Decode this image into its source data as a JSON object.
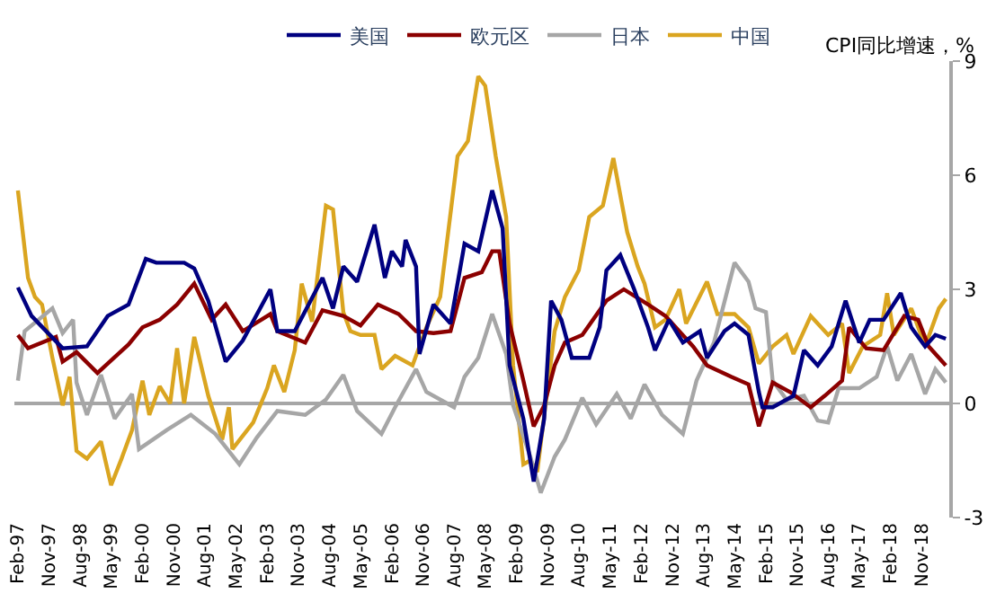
{
  "chart_data": {
    "type": "line",
    "ylabel": "CPI同比增速，%",
    "legend": "top",
    "grid": false,
    "marker": "none",
    "line_style": "solid",
    "xlim": [
      "1997-01",
      "2019-07"
    ],
    "xticks": [
      {
        "value": "1997-02",
        "label": "Feb-97"
      },
      {
        "value": "1997-11",
        "label": "Nov-97"
      },
      {
        "value": "1998-08",
        "label": "Aug-98"
      },
      {
        "value": "1999-05",
        "label": "May-99"
      },
      {
        "value": "2000-02",
        "label": "Feb-00"
      },
      {
        "value": "2000-11",
        "label": "Nov-00"
      },
      {
        "value": "2001-08",
        "label": "Aug-01"
      },
      {
        "value": "2002-05",
        "label": "May-02"
      },
      {
        "value": "2003-02",
        "label": "Feb-03"
      },
      {
        "value": "2003-11",
        "label": "Nov-03"
      },
      {
        "value": "2004-08",
        "label": "Aug-04"
      },
      {
        "value": "2005-05",
        "label": "May-05"
      },
      {
        "value": "2006-02",
        "label": "Feb-06"
      },
      {
        "value": "2006-11",
        "label": "Nov-06"
      },
      {
        "value": "2007-08",
        "label": "Aug-07"
      },
      {
        "value": "2008-05",
        "label": "May-08"
      },
      {
        "value": "2009-02",
        "label": "Feb-09"
      },
      {
        "value": "2009-11",
        "label": "Nov-09"
      },
      {
        "value": "2010-08",
        "label": "Aug-10"
      },
      {
        "value": "2011-05",
        "label": "May-11"
      },
      {
        "value": "2012-02",
        "label": "Feb-12"
      },
      {
        "value": "2012-11",
        "label": "Nov-12"
      },
      {
        "value": "2013-08",
        "label": "Aug-13"
      },
      {
        "value": "2014-05",
        "label": "May-14"
      },
      {
        "value": "2015-02",
        "label": "Feb-15"
      },
      {
        "value": "2015-11",
        "label": "Nov-15"
      },
      {
        "value": "2016-08",
        "label": "Aug-16"
      },
      {
        "value": "2017-05",
        "label": "May-17"
      },
      {
        "value": "2018-02",
        "label": "Feb-18"
      },
      {
        "value": "2018-11",
        "label": "Nov-18"
      }
    ],
    "ylim": [
      -3,
      9
    ],
    "yticks": [
      -3,
      0,
      3,
      6,
      9
    ],
    "ref_lines": [
      {
        "axis": "y",
        "value": 0,
        "color": "#a6a6a6"
      }
    ],
    "series": [
      {
        "name": "美国",
        "color": "#000080",
        "x": [
          "1997-02",
          "1997-06",
          "1998-03",
          "1998-10",
          "1999-04",
          "1999-10",
          "2000-03",
          "2000-06",
          "2001-02",
          "2001-05",
          "2001-09",
          "2002-02",
          "2002-07",
          "2003-03",
          "2003-05",
          "2003-10",
          "2004-06",
          "2004-09",
          "2004-12",
          "2005-04",
          "2005-09",
          "2005-12",
          "2006-02",
          "2006-05",
          "2006-06",
          "2006-09",
          "2006-10",
          "2007-02",
          "2007-07",
          "2007-11",
          "2008-03",
          "2008-07",
          "2008-10",
          "2008-12",
          "2009-04",
          "2009-07",
          "2009-10",
          "2009-12",
          "2010-03",
          "2010-06",
          "2010-11",
          "2011-02",
          "2011-04",
          "2011-08",
          "2011-12",
          "2012-04",
          "2012-06",
          "2012-10",
          "2013-02",
          "2013-07",
          "2013-09",
          "2014-02",
          "2014-05",
          "2014-09",
          "2014-12",
          "2015-01",
          "2015-04",
          "2015-10",
          "2016-01",
          "2016-05",
          "2016-09",
          "2017-01",
          "2017-05",
          "2017-08",
          "2017-12",
          "2018-05",
          "2018-08",
          "2018-12",
          "2019-03",
          "2019-06"
        ],
        "values": [
          3.05,
          2.3,
          1.45,
          1.5,
          2.3,
          2.6,
          3.8,
          3.7,
          3.7,
          3.55,
          2.7,
          1.1,
          1.65,
          3.0,
          1.9,
          1.9,
          3.3,
          2.5,
          3.6,
          3.2,
          4.7,
          3.3,
          4.0,
          3.6,
          4.3,
          3.6,
          1.3,
          2.6,
          2.1,
          4.2,
          4.0,
          5.6,
          4.6,
          1.0,
          -0.4,
          -2.05,
          -0.4,
          2.7,
          2.2,
          1.2,
          1.2,
          2.0,
          3.5,
          3.9,
          3.0,
          2.0,
          1.4,
          2.2,
          1.6,
          1.9,
          1.2,
          1.9,
          2.1,
          1.8,
          0.3,
          -0.1,
          -0.1,
          0.2,
          1.4,
          1.0,
          1.5,
          2.7,
          1.6,
          2.2,
          2.2,
          2.9,
          2.0,
          1.5,
          1.8,
          1.7
        ]
      },
      {
        "name": "欧元区",
        "color": "#8b0000",
        "x": [
          "1997-02",
          "1997-05",
          "1998-01",
          "1998-03",
          "1998-07",
          "1999-01",
          "1999-04",
          "1999-10",
          "2000-02",
          "2000-07",
          "2000-12",
          "2001-05",
          "2001-10",
          "2002-02",
          "2002-07",
          "2003-03",
          "2003-05",
          "2004-01",
          "2004-06",
          "2004-12",
          "2005-05",
          "2005-10",
          "2006-04",
          "2006-09",
          "2007-02",
          "2007-07",
          "2007-11",
          "2008-04",
          "2008-07",
          "2008-09",
          "2008-12",
          "2009-04",
          "2009-07",
          "2009-10",
          "2010-01",
          "2010-04",
          "2010-09",
          "2011-04",
          "2011-09",
          "2012-04",
          "2012-09",
          "2013-05",
          "2013-09",
          "2014-04",
          "2014-09",
          "2014-12",
          "2015-04",
          "2015-09",
          "2016-03",
          "2016-07",
          "2016-12",
          "2017-02",
          "2017-07",
          "2017-12",
          "2018-06",
          "2018-10",
          "2019-01",
          "2019-06"
        ],
        "values": [
          1.8,
          1.45,
          1.75,
          1.1,
          1.35,
          0.8,
          1.05,
          1.55,
          2.0,
          2.2,
          2.6,
          3.15,
          2.2,
          2.6,
          1.9,
          2.35,
          1.9,
          1.6,
          2.45,
          2.3,
          2.05,
          2.6,
          2.35,
          1.9,
          1.85,
          1.9,
          3.3,
          3.45,
          4.0,
          4.0,
          2.1,
          0.6,
          -0.6,
          -0.05,
          1.0,
          1.6,
          1.8,
          2.7,
          3.0,
          2.6,
          2.3,
          1.5,
          1.0,
          0.7,
          0.5,
          -0.6,
          0.55,
          0.3,
          -0.1,
          0.2,
          0.6,
          2.0,
          1.45,
          1.4,
          2.3,
          2.2,
          1.5,
          1.0
        ]
      },
      {
        "name": "日本",
        "color": "#a6a6a6",
        "x": [
          "1997-02",
          "1997-04",
          "1997-12",
          "1998-03",
          "1998-06",
          "1998-07",
          "1998-10",
          "1999-02",
          "1999-06",
          "1999-11",
          "2000-01",
          "2000-09",
          "2001-04",
          "2001-11",
          "2002-06",
          "2002-11",
          "2003-05",
          "2004-01",
          "2004-07",
          "2004-12",
          "2005-04",
          "2005-11",
          "2006-03",
          "2006-09",
          "2006-12",
          "2007-08",
          "2007-11",
          "2008-03",
          "2008-07",
          "2008-11",
          "2009-01",
          "2009-06",
          "2009-09",
          "2010-01",
          "2010-04",
          "2010-09",
          "2011-01",
          "2011-07",
          "2011-11",
          "2012-03",
          "2012-08",
          "2013-02",
          "2013-06",
          "2013-11",
          "2014-05",
          "2014-09",
          "2014-11",
          "2015-02",
          "2015-04",
          "2015-08",
          "2016-01",
          "2016-05",
          "2016-08",
          "2016-11",
          "2017-05",
          "2017-10",
          "2018-01",
          "2018-04",
          "2018-08",
          "2018-12",
          "2019-03",
          "2019-06"
        ],
        "values": [
          0.6,
          1.9,
          2.5,
          1.85,
          2.2,
          0.55,
          -0.3,
          0.75,
          -0.4,
          0.25,
          -1.2,
          -0.7,
          -0.3,
          -0.8,
          -1.6,
          -0.9,
          -0.2,
          -0.3,
          0.1,
          0.75,
          -0.2,
          -0.8,
          -0.1,
          0.9,
          0.3,
          -0.1,
          0.7,
          1.2,
          2.35,
          1.3,
          -0.05,
          -1.4,
          -2.35,
          -1.4,
          -0.95,
          0.15,
          -0.55,
          0.25,
          -0.4,
          0.5,
          -0.3,
          -0.8,
          0.6,
          1.6,
          3.7,
          3.2,
          2.5,
          2.4,
          0.6,
          0.1,
          0.2,
          -0.45,
          -0.5,
          0.4,
          0.4,
          0.7,
          1.5,
          0.6,
          1.3,
          0.25,
          0.9,
          0.55
        ]
      },
      {
        "name": "中国",
        "color": "#daa520",
        "x": [
          "1997-02",
          "1997-05",
          "1997-07",
          "1997-09",
          "1997-12",
          "1998-03",
          "1998-05",
          "1998-07",
          "1998-10",
          "1999-02",
          "1999-05",
          "1999-08",
          "1999-11",
          "2000-02",
          "2000-04",
          "2000-07",
          "2000-10",
          "2000-12",
          "2001-02",
          "2001-05",
          "2001-09",
          "2002-01",
          "2002-03",
          "2002-04",
          "2002-10",
          "2003-02",
          "2003-04",
          "2003-07",
          "2003-10",
          "2003-12",
          "2004-03",
          "2004-07",
          "2004-09",
          "2004-12",
          "2005-02",
          "2005-05",
          "2005-09",
          "2005-11",
          "2006-03",
          "2006-08",
          "2006-12",
          "2007-04",
          "2007-09",
          "2007-12",
          "2008-03",
          "2008-05",
          "2008-08",
          "2008-11",
          "2009-01",
          "2009-04",
          "2009-06",
          "2009-08",
          "2010-01",
          "2010-04",
          "2010-08",
          "2010-11",
          "2011-03",
          "2011-06",
          "2011-10",
          "2012-01",
          "2012-03",
          "2012-06",
          "2012-09",
          "2013-01",
          "2013-03",
          "2013-09",
          "2013-12",
          "2014-05",
          "2014-09",
          "2014-12",
          "2015-04",
          "2015-08",
          "2015-10",
          "2016-03",
          "2016-08",
          "2016-12",
          "2017-02",
          "2017-06",
          "2017-11",
          "2018-01",
          "2018-03",
          "2018-08",
          "2018-12",
          "2019-04",
          "2019-06"
        ],
        "values": [
          5.6,
          3.3,
          2.8,
          2.6,
          1.2,
          -0.05,
          0.7,
          -1.25,
          -1.45,
          -1.0,
          -2.15,
          -1.45,
          -0.7,
          0.6,
          -0.3,
          0.45,
          0.0,
          1.45,
          0.0,
          1.75,
          0.2,
          -0.95,
          -0.1,
          -1.2,
          -0.5,
          0.4,
          1.0,
          0.3,
          1.4,
          3.15,
          2.15,
          5.2,
          5.1,
          2.4,
          1.9,
          1.8,
          1.8,
          0.9,
          1.25,
          1.0,
          2.0,
          2.8,
          6.5,
          6.9,
          8.6,
          8.35,
          6.5,
          4.9,
          1.0,
          -1.6,
          -1.5,
          -1.8,
          1.9,
          2.8,
          3.5,
          4.9,
          5.2,
          6.45,
          4.5,
          3.6,
          3.15,
          2.0,
          2.2,
          3.0,
          2.1,
          3.2,
          2.35,
          2.35,
          2.0,
          1.05,
          1.5,
          1.8,
          1.3,
          2.3,
          1.8,
          2.1,
          0.8,
          1.5,
          1.8,
          2.9,
          1.8,
          2.5,
          1.5,
          2.5,
          2.75
        ]
      }
    ]
  }
}
